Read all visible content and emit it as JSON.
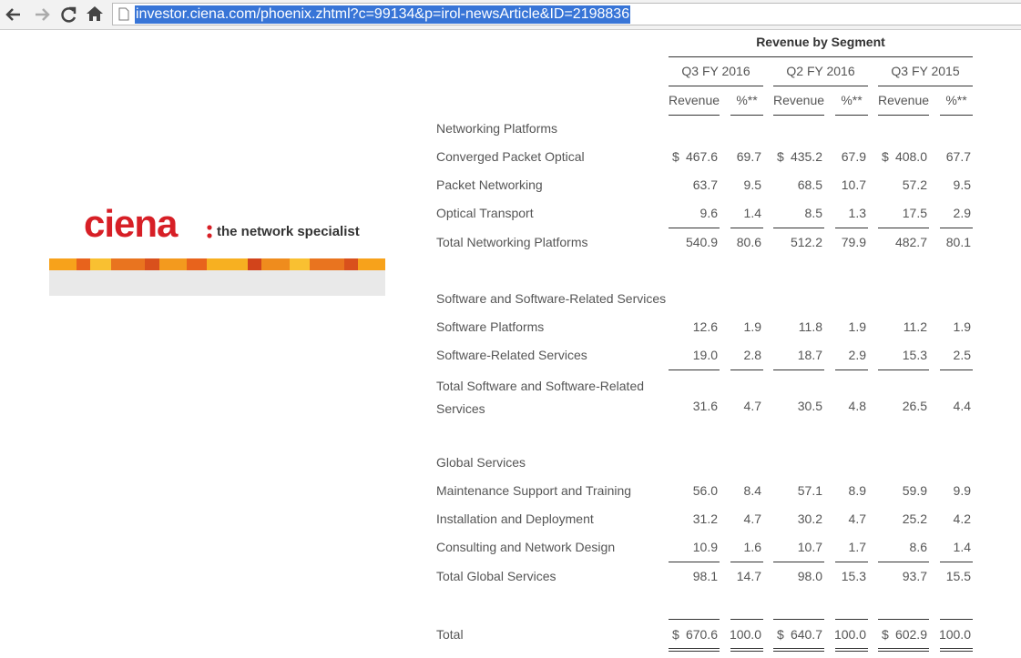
{
  "browser": {
    "url": "investor.ciena.com/phoenix.zhtml?c=99134&p=irol-newsArticle&ID=2198836"
  },
  "logo": {
    "brand": "ciena",
    "tagline": "the network specialist"
  },
  "table": {
    "title": "Revenue by Segment",
    "periods": [
      "Q3 FY 2016",
      "Q2 FY 2016",
      "Q3 FY 2015"
    ],
    "columns": [
      "Revenue",
      "%**",
      "Revenue",
      "%**",
      "Revenue",
      "%**"
    ],
    "rows": [
      {
        "label": "Networking Platforms"
      },
      {
        "label": "Converged Packet Optical",
        "currency": "$",
        "cells": [
          "467.6",
          "69.7",
          "435.2",
          "67.9",
          "408.0",
          "67.7"
        ]
      },
      {
        "label": "Packet Networking",
        "cells": [
          "63.7",
          "9.5",
          "68.5",
          "10.7",
          "57.2",
          "9.5"
        ]
      },
      {
        "label": "Optical Transport",
        "cells": [
          "9.6",
          "1.4",
          "8.5",
          "1.3",
          "17.5",
          "2.9"
        ]
      },
      {
        "label": "Total Networking Platforms",
        "cells": [
          "540.9",
          "80.6",
          "512.2",
          "79.9",
          "482.7",
          "80.1"
        ]
      },
      {
        "label": "Software and Software-Related Services"
      },
      {
        "label": "Software Platforms",
        "cells": [
          "12.6",
          "1.9",
          "11.8",
          "1.9",
          "11.2",
          "1.9"
        ]
      },
      {
        "label": "Software-Related Services",
        "cells": [
          "19.0",
          "2.8",
          "18.7",
          "2.9",
          "15.3",
          "2.5"
        ]
      },
      {
        "label": "Total Software and Software-Related Services",
        "cells": [
          "31.6",
          "4.7",
          "30.5",
          "4.8",
          "26.5",
          "4.4"
        ]
      },
      {
        "label": "Global Services"
      },
      {
        "label": "Maintenance Support and Training",
        "cells": [
          "56.0",
          "8.4",
          "57.1",
          "8.9",
          "59.9",
          "9.9"
        ]
      },
      {
        "label": "Installation and Deployment",
        "cells": [
          "31.2",
          "4.7",
          "30.2",
          "4.7",
          "25.2",
          "4.2"
        ]
      },
      {
        "label": "Consulting and Network Design",
        "cells": [
          "10.9",
          "1.6",
          "10.7",
          "1.7",
          "8.6",
          "1.4"
        ]
      },
      {
        "label": "Total Global Services",
        "cells": [
          "98.1",
          "14.7",
          "98.0",
          "15.3",
          "93.7",
          "15.5"
        ]
      },
      {
        "label": "Total",
        "currency": "$",
        "cells": [
          "670.6",
          "100.0",
          "640.7",
          "100.0",
          "602.9",
          "100.0"
        ]
      }
    ]
  }
}
